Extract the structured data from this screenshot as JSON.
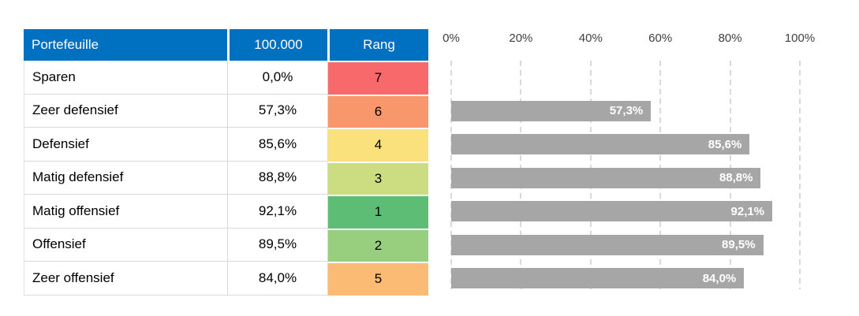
{
  "table": {
    "headers": [
      "Portefeuille",
      "100.000",
      "Rang"
    ],
    "header_bg": "#0070C0",
    "rows": [
      {
        "name": "Sparen",
        "value": "0,0%",
        "rank": "7",
        "rank_color": "#F8696B"
      },
      {
        "name": "Zeer defensief",
        "value": "57,3%",
        "rank": "6",
        "rank_color": "#F9976C"
      },
      {
        "name": "Defensief",
        "value": "85,6%",
        "rank": "4",
        "rank_color": "#FBE17C"
      },
      {
        "name": "Matig defensief",
        "value": "88,8%",
        "rank": "3",
        "rank_color": "#CBDC81"
      },
      {
        "name": "Matig offensief",
        "value": "92,1%",
        "rank": "1",
        "rank_color": "#5DBD74"
      },
      {
        "name": "Offensief",
        "value": "89,5%",
        "rank": "2",
        "rank_color": "#97CF7E"
      },
      {
        "name": "Zeer offensief",
        "value": "84,0%",
        "rank": "5",
        "rank_color": "#FBBB74"
      }
    ]
  },
  "chart_data": {
    "type": "bar",
    "orientation": "horizontal",
    "categories": [
      "Sparen",
      "Zeer defensief",
      "Defensief",
      "Matig defensief",
      "Matig offensief",
      "Offensief",
      "Zeer offensief"
    ],
    "values": [
      0.0,
      57.3,
      85.6,
      88.8,
      92.1,
      89.5,
      84.0
    ],
    "bar_labels": [
      "",
      "57,3%",
      "85,6%",
      "88,8%",
      "92,1%",
      "89,5%",
      "84,0%"
    ],
    "x_ticks": [
      "0%",
      "20%",
      "40%",
      "60%",
      "80%",
      "100%"
    ],
    "xlim": [
      0,
      100
    ],
    "title": "",
    "xlabel": "",
    "ylabel": "",
    "legend": "none",
    "grid": "vertical-dashed",
    "bar_color": "#A6A6A6",
    "bar_label_color": "#FFFFFF",
    "gridline_color": "#D9D9D9",
    "axis_label_color": "#404040"
  }
}
